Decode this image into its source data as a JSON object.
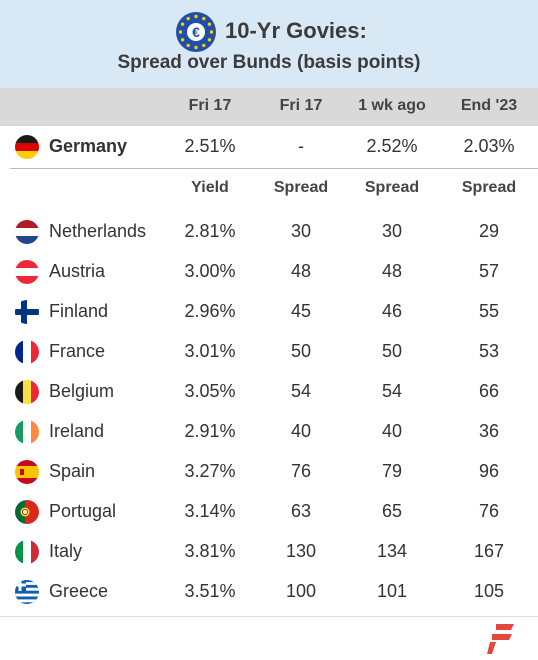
{
  "header": {
    "title": "10-Yr Govies:",
    "subtitle": "Spread over Bunds (basis points)",
    "euro_symbol": "€"
  },
  "columns": {
    "top": [
      "Fri 17",
      "Fri 17",
      "1 wk ago",
      "End '23"
    ],
    "sub": [
      "Yield",
      "Spread",
      "Spread",
      "Spread"
    ]
  },
  "benchmark": {
    "country": "Germany",
    "flag": "flag-germany-icon",
    "yield": "2.51%",
    "spread": "-",
    "wk_ago": "2.52%",
    "end23": "2.03%"
  },
  "chart_data": {
    "type": "table",
    "title": "10-Yr Govies: Spread over Bunds (basis points)",
    "columns": [
      "Yield",
      "Spread",
      "Spread",
      "Spread"
    ],
    "column_dates": [
      "Fri 17",
      "Fri 17",
      "1 wk ago",
      "End '23"
    ],
    "rows": [
      {
        "country": "Netherlands",
        "yield": "2.81%",
        "spread": 30,
        "wk_ago": 30,
        "end23": 29
      },
      {
        "country": "Austria",
        "yield": "3.00%",
        "spread": 48,
        "wk_ago": 48,
        "end23": 57
      },
      {
        "country": "Finland",
        "yield": "2.96%",
        "spread": 45,
        "wk_ago": 46,
        "end23": 55
      },
      {
        "country": "France",
        "yield": "3.01%",
        "spread": 50,
        "wk_ago": 50,
        "end23": 53
      },
      {
        "country": "Belgium",
        "yield": "3.05%",
        "spread": 54,
        "wk_ago": 54,
        "end23": 66
      },
      {
        "country": "Ireland",
        "yield": "2.91%",
        "spread": 40,
        "wk_ago": 40,
        "end23": 36
      },
      {
        "country": "Spain",
        "yield": "3.27%",
        "spread": 76,
        "wk_ago": 79,
        "end23": 96
      },
      {
        "country": "Portugal",
        "yield": "3.14%",
        "spread": 63,
        "wk_ago": 65,
        "end23": 76
      },
      {
        "country": "Italy",
        "yield": "3.81%",
        "spread": 130,
        "wk_ago": 134,
        "end23": 167
      },
      {
        "country": "Greece",
        "yield": "3.51%",
        "spread": 100,
        "wk_ago": 101,
        "end23": 105
      }
    ]
  },
  "colors": {
    "header_bg": "#d9e8f5",
    "colhead_bg": "#d9d9d9",
    "eu_blue": "#1f4fa8",
    "eu_star": "#ffcc00",
    "logo_red": "#e4473c"
  }
}
